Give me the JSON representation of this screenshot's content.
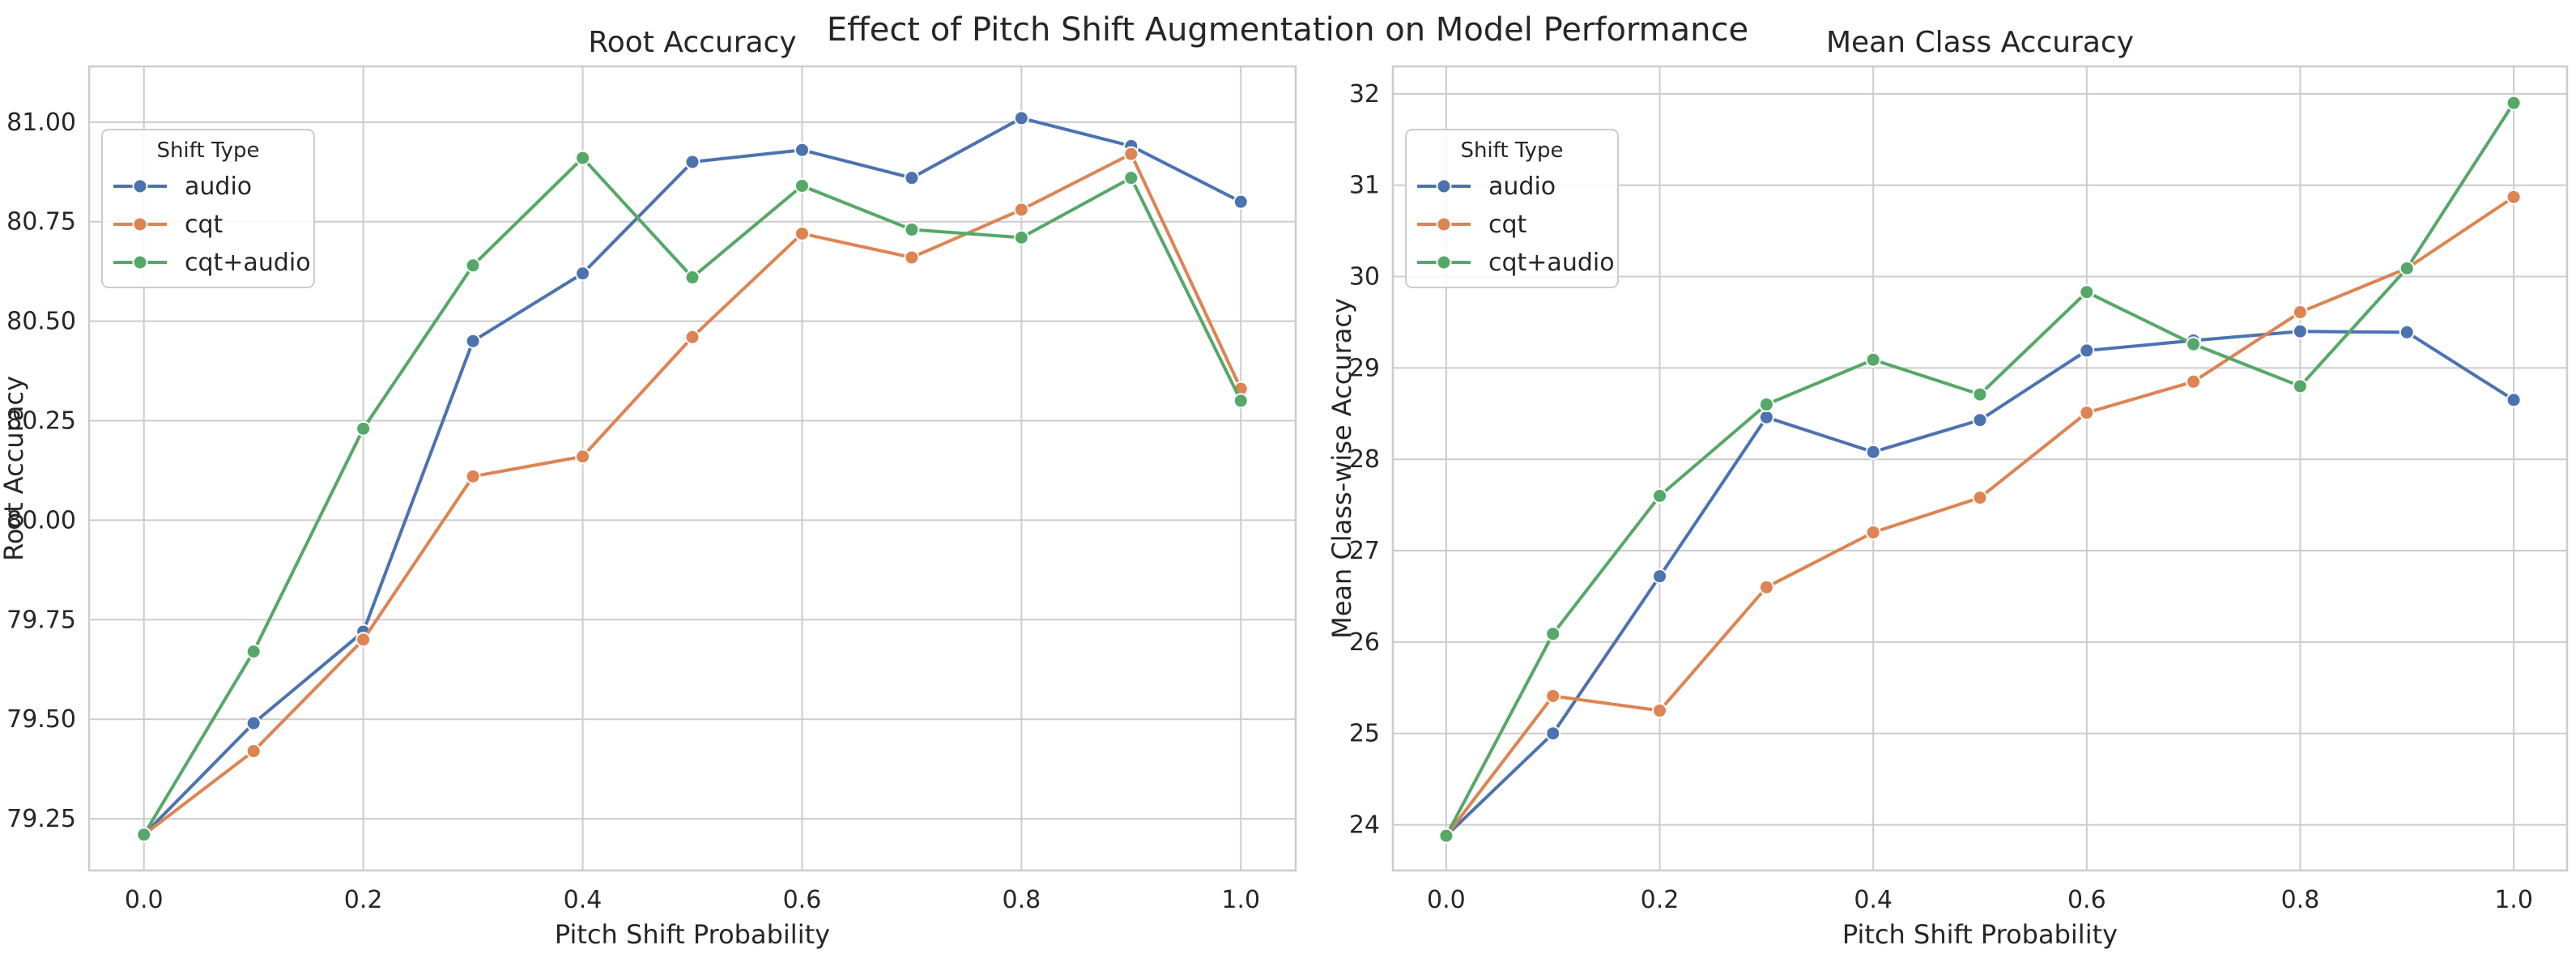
{
  "figure": {
    "suptitle": "Effect of Pitch Shift Augmentation on Model Performance"
  },
  "chart_data": [
    {
      "type": "line",
      "title": "Root Accuracy",
      "xlabel": "Pitch Shift Probability",
      "ylabel": "Root Accuracy",
      "xlim": [
        -0.05,
        1.05
      ],
      "ylim": [
        79.12,
        81.14
      ],
      "xticks": [
        0.0,
        0.2,
        0.4,
        0.6,
        0.8,
        1.0
      ],
      "xtick_labels": [
        "0.0",
        "0.2",
        "0.4",
        "0.6",
        "0.8",
        "1.0"
      ],
      "yticks": [
        79.25,
        79.5,
        79.75,
        80.0,
        80.25,
        80.5,
        80.75,
        81.0
      ],
      "ytick_labels": [
        "79.25",
        "79.50",
        "79.75",
        "80.00",
        "80.25",
        "80.50",
        "80.75",
        "81.00"
      ],
      "grid": true,
      "legend": {
        "title": "Shift Type",
        "position": "upper-left"
      },
      "x": [
        0.0,
        0.1,
        0.2,
        0.3,
        0.4,
        0.5,
        0.6,
        0.7,
        0.8,
        0.9,
        1.0
      ],
      "series": [
        {
          "name": "audio",
          "color": "#4c72b0",
          "values": [
            79.21,
            79.49,
            79.72,
            80.45,
            80.62,
            80.9,
            80.93,
            80.86,
            81.01,
            80.94,
            80.8
          ]
        },
        {
          "name": "cqt",
          "color": "#dd8452",
          "values": [
            79.21,
            79.42,
            79.7,
            80.11,
            80.16,
            80.46,
            80.72,
            80.66,
            80.78,
            80.92,
            80.33
          ]
        },
        {
          "name": "cqt+audio",
          "color": "#55a868",
          "values": [
            79.21,
            79.67,
            80.23,
            80.64,
            80.91,
            80.61,
            80.84,
            80.73,
            80.71,
            80.86,
            80.3
          ]
        }
      ]
    },
    {
      "type": "line",
      "title": "Mean Class Accuracy",
      "xlabel": "Pitch Shift Probability",
      "ylabel": "Mean Class-wise Accuracy",
      "xlim": [
        -0.05,
        1.05
      ],
      "ylim": [
        23.5,
        32.3
      ],
      "xticks": [
        0.0,
        0.2,
        0.4,
        0.6,
        0.8,
        1.0
      ],
      "xtick_labels": [
        "0.0",
        "0.2",
        "0.4",
        "0.6",
        "0.8",
        "1.0"
      ],
      "yticks": [
        24,
        25,
        26,
        27,
        28,
        29,
        30,
        31,
        32
      ],
      "ytick_labels": [
        "24",
        "25",
        "26",
        "27",
        "28",
        "29",
        "30",
        "31",
        "32"
      ],
      "grid": true,
      "legend": {
        "title": "Shift Type",
        "position": "upper-left"
      },
      "x": [
        0.0,
        0.1,
        0.2,
        0.3,
        0.4,
        0.5,
        0.6,
        0.7,
        0.8,
        0.9,
        1.0
      ],
      "series": [
        {
          "name": "audio",
          "color": "#4c72b0",
          "values": [
            23.88,
            25.0,
            26.72,
            28.46,
            28.08,
            28.43,
            29.19,
            29.3,
            29.4,
            29.39,
            28.65
          ]
        },
        {
          "name": "cqt",
          "color": "#dd8452",
          "values": [
            23.88,
            25.41,
            25.25,
            26.6,
            27.2,
            27.58,
            28.51,
            28.85,
            29.61,
            30.09,
            30.87
          ]
        },
        {
          "name": "cqt+audio",
          "color": "#55a868",
          "values": [
            23.88,
            26.09,
            27.6,
            28.6,
            29.09,
            28.71,
            29.83,
            29.26,
            28.8,
            30.09,
            31.9
          ]
        }
      ]
    }
  ]
}
